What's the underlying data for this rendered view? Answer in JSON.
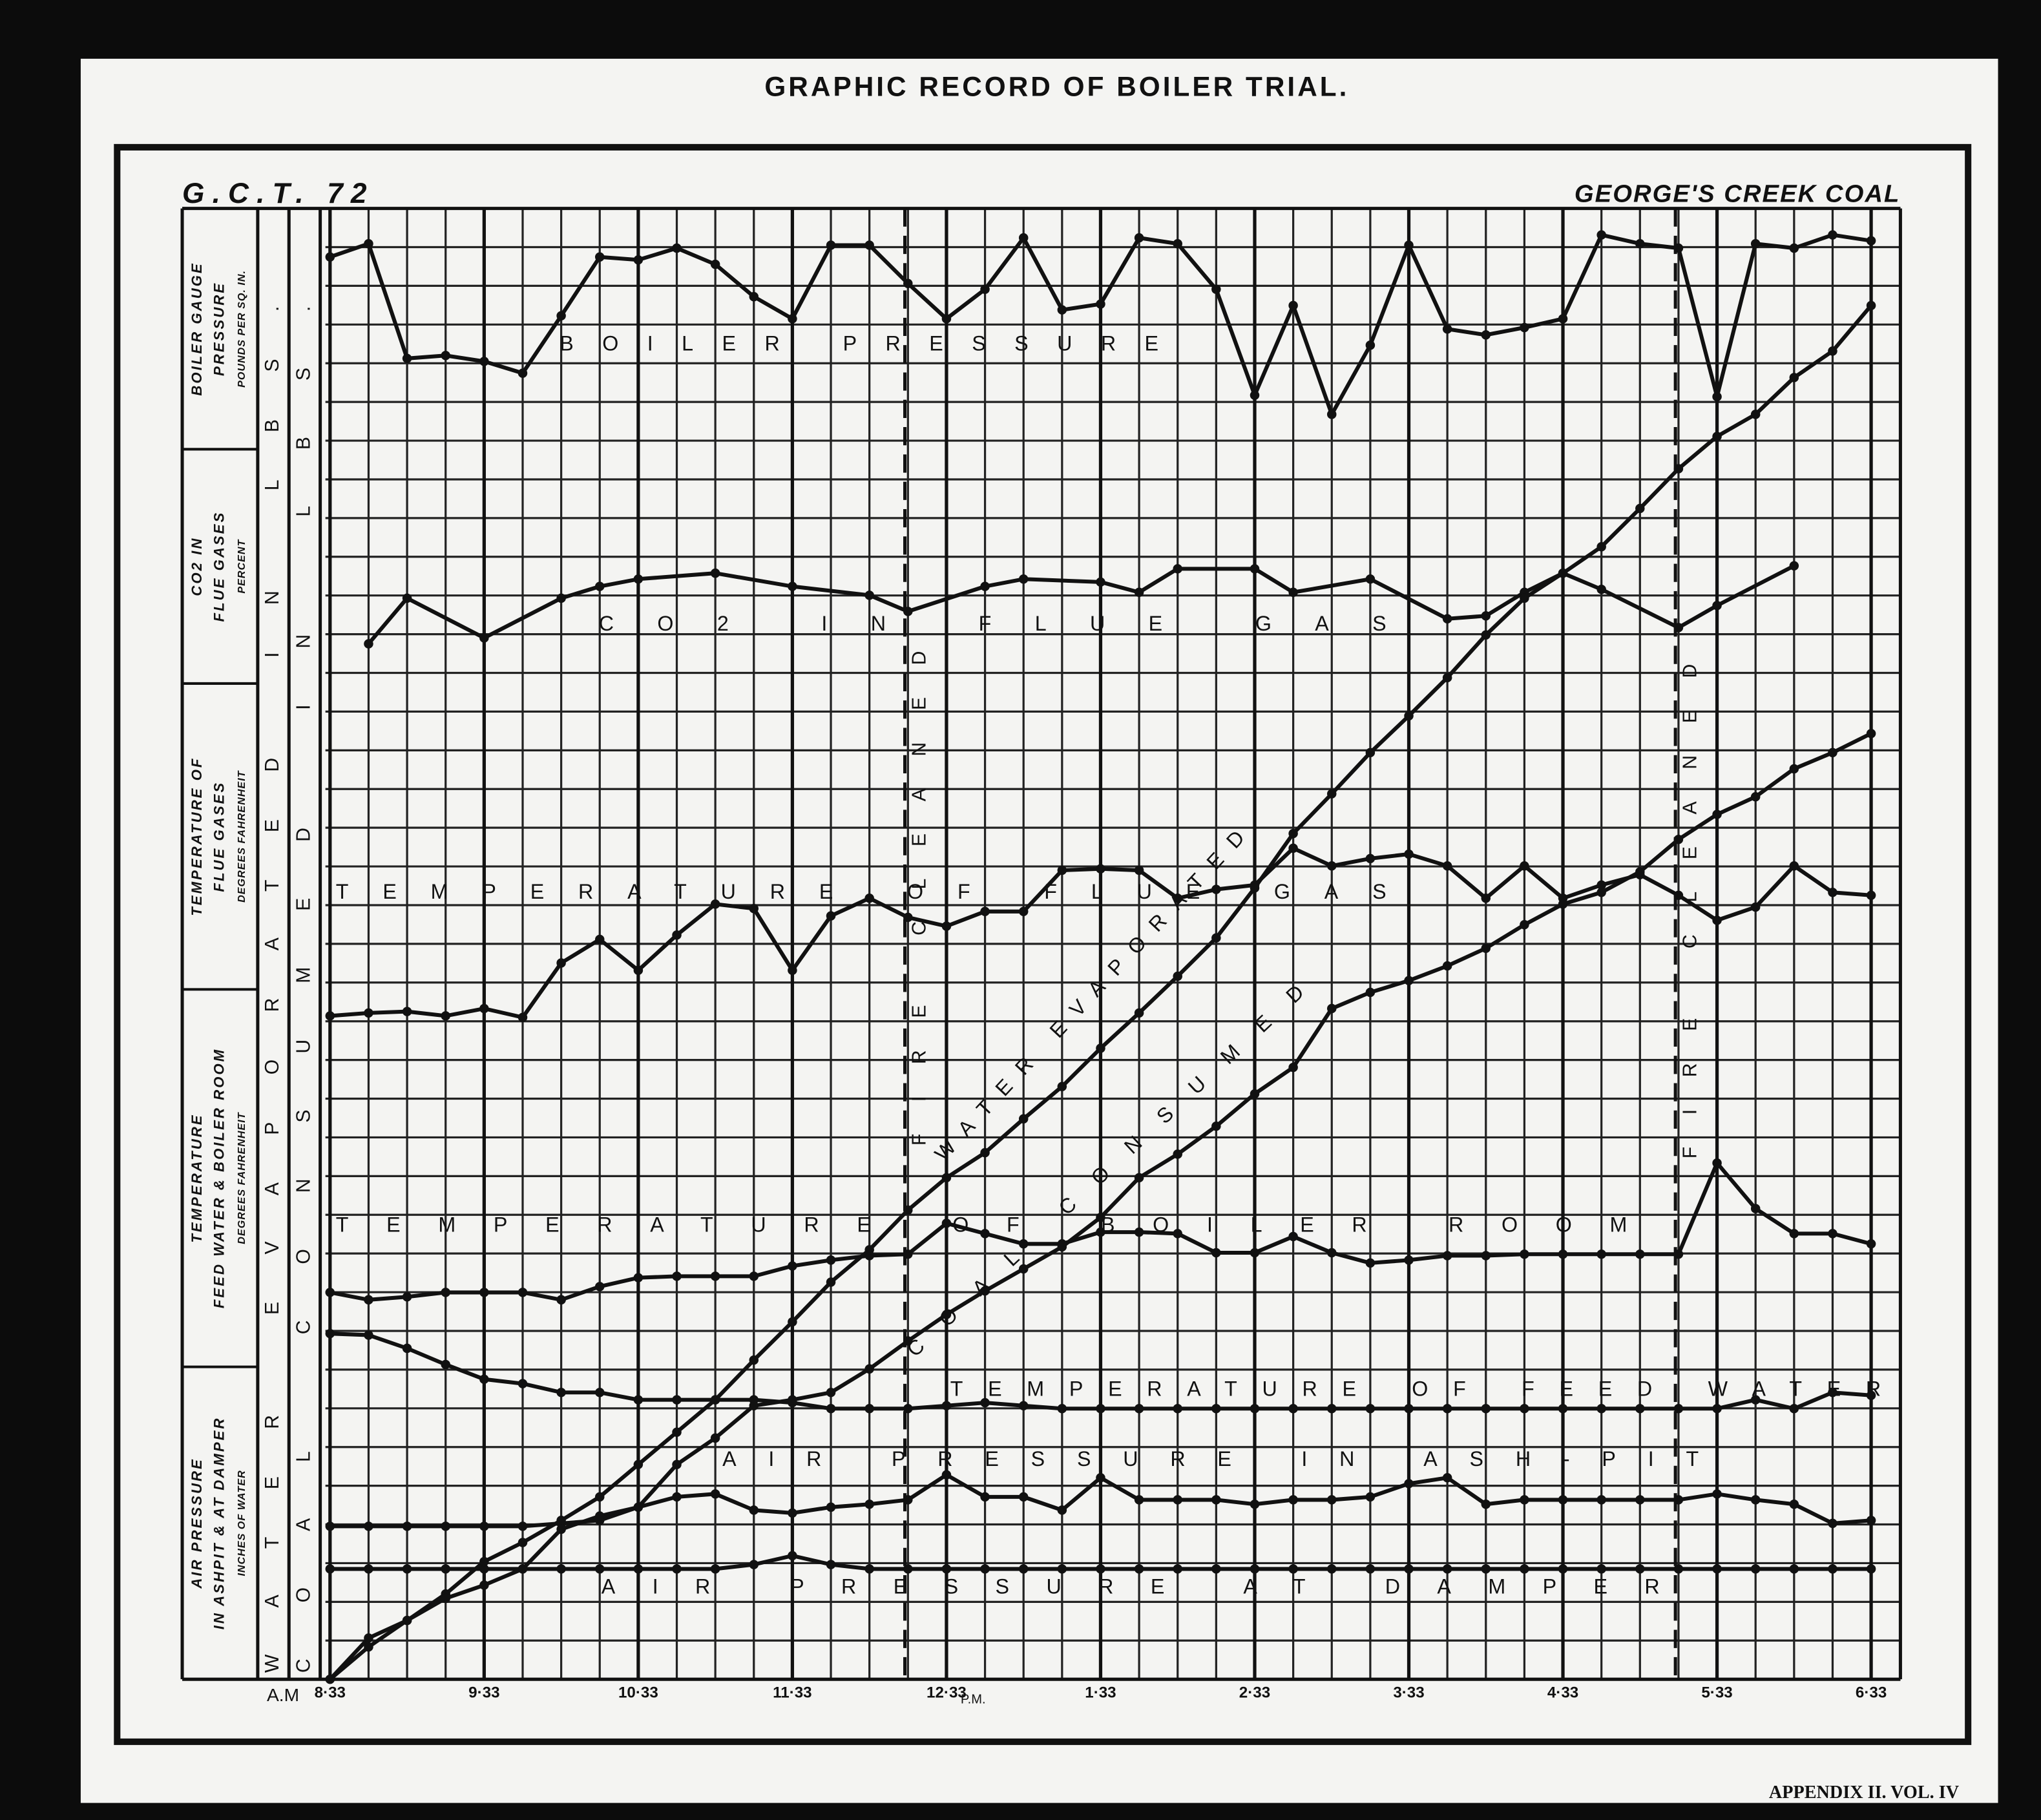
{
  "chart_data": {
    "type": "line",
    "title": "GRAPHIC RECORD OF BOILER TRIAL.",
    "code": "G.C.T. 72",
    "coal": "GEORGE'S CREEK COAL",
    "am_label": "A.M",
    "pm_label": "P.M.",
    "band_labels": [
      [
        "BOILER GAUGE",
        "PRESSURE",
        "POUNDS PER SQ. IN."
      ],
      [
        "CO2 IN",
        "FLUE GASES",
        "PERCENT"
      ],
      [
        "TEMPERATURE OF",
        "FLUE GASES",
        "DEGREES FAHRENHEIT"
      ],
      [
        "TEMPERATURE",
        "FEED WATER & BOILER ROOM",
        "DEGREES FAHRENHEIT"
      ],
      [
        "AIR PRESSURE",
        "IN ASHPIT & AT DAMPER",
        "INCHES OF WATER"
      ]
    ],
    "column_labels": [
      "WATER EVAPORATED IN LBS.",
      "COAL CONSUMED IN LBS."
    ],
    "fire_cleaned": [
      {
        "label": "FIRE CLEANED",
        "x": 12.28
      },
      {
        "label": "FIRE CLEANED",
        "x": 17.28
      }
    ],
    "xlim": [
      8.52,
      18.74
    ],
    "ylim": [
      0,
      100
    ],
    "grid": true,
    "xticks": [
      {
        "value": 8.55,
        "label": "8·33"
      },
      {
        "value": 9.55,
        "label": "9·33"
      },
      {
        "value": 10.55,
        "label": "10·33"
      },
      {
        "value": 11.55,
        "label": "11·33"
      },
      {
        "value": 12.55,
        "label": "12·33"
      },
      {
        "value": 13.55,
        "label": "1·33"
      },
      {
        "value": 14.55,
        "label": "2·33"
      },
      {
        "value": 15.55,
        "label": "3·33"
      },
      {
        "value": 16.55,
        "label": "4·33"
      },
      {
        "value": 17.55,
        "label": "5·33"
      },
      {
        "value": 18.55,
        "label": "6·33"
      }
    ],
    "x": [
      8.55,
      8.8,
      9.05,
      9.3,
      9.55,
      9.8,
      10.05,
      10.3,
      10.55,
      10.8,
      11.05,
      11.3,
      11.55,
      11.8,
      12.05,
      12.3,
      12.55,
      12.8,
      13.05,
      13.3,
      13.55,
      13.8,
      14.05,
      14.3,
      14.55,
      14.8,
      15.05,
      15.3,
      15.55,
      15.8,
      16.05,
      16.3,
      16.55,
      16.8,
      17.05,
      17.3,
      17.55,
      17.8,
      18.05,
      18.3,
      18.55
    ],
    "series": [
      {
        "name": "BOILER PRESSURE",
        "color": "#111111",
        "values": [
          96.7,
          97.6,
          89.8,
          90,
          89.6,
          88.8,
          92.7,
          96.7,
          96.5,
          97.3,
          96.2,
          94.0,
          92.5,
          97.5,
          97.5,
          94.9,
          92.5,
          94.5,
          98.0,
          93.1,
          93.5,
          98.0,
          97.6,
          94.5,
          87.3,
          93.4,
          86.0,
          90.7,
          97.5,
          91.8,
          91.4,
          91.9,
          92.5,
          98.2,
          97.6,
          97.3,
          87.2,
          97.6,
          97.3,
          98.2,
          97.8
        ]
      },
      {
        "name": "CO2 IN FLUE GAS",
        "color": "#111111",
        "x": [
          8.8,
          9.05,
          9.55,
          10.05,
          10.3,
          10.55,
          11.05,
          11.55,
          12.05,
          12.3,
          12.8,
          13.05,
          13.55,
          13.8,
          14.05,
          14.55,
          14.8,
          15.3,
          15.8,
          16.05,
          16.3,
          16.55,
          16.8,
          17.3,
          17.55,
          18.05
        ],
        "values": [
          70.4,
          73.5,
          70.8,
          73.5,
          74.3,
          74.8,
          75.2,
          74.3,
          73.7,
          72.6,
          74.3,
          74.8,
          74.6,
          73.9,
          75.5,
          75.5,
          73.9,
          74.8,
          72.1,
          72.3,
          73.9,
          75.2,
          74.1,
          71.5,
          73.0,
          75.7
        ]
      },
      {
        "name": "TEMPERATURE OF FLUE GAS",
        "color": "#111111",
        "values": [
          45.1,
          45.3,
          45.4,
          45.1,
          45.6,
          45.0,
          48.7,
          50.3,
          48.2,
          50.6,
          52.7,
          52.4,
          48.2,
          51.9,
          53.1,
          51.8,
          51.2,
          52.2,
          52.2,
          55.0,
          55.1,
          55.0,
          53.1,
          53.7,
          54.0,
          56.5,
          55.3,
          55.8,
          56.1,
          55.3,
          53.1,
          55.3,
          53.1,
          54.0,
          54.7,
          53.3,
          51.6,
          52.5,
          55.3,
          53.5,
          53.3
        ]
      },
      {
        "name": "TEMPERATURE OF BOILER ROOM",
        "color": "#111111",
        "values": [
          26.3,
          25.8,
          26.0,
          26.3,
          26.3,
          26.3,
          25.8,
          26.7,
          27.3,
          27.4,
          27.4,
          27.4,
          28.1,
          28.5,
          28.8,
          28.9,
          31.0,
          30.3,
          29.6,
          29.6,
          30.4,
          30.4,
          30.3,
          29.0,
          29.0,
          30.1,
          29.0,
          28.3,
          28.5,
          28.8,
          28.8,
          28.9,
          28.9,
          28.9,
          28.9,
          28.9,
          35.1,
          32.0,
          30.3,
          30.3,
          29.6
        ]
      },
      {
        "name": "TEMPERATURE OF FEED WATER",
        "color": "#111111",
        "values": [
          23.5,
          23.4,
          22.5,
          21.4,
          20.4,
          20.1,
          19.5,
          19.5,
          19.0,
          19.0,
          19.0,
          19.0,
          18.8,
          18.4,
          18.4,
          18.4,
          18.6,
          18.8,
          18.6,
          18.4,
          18.4,
          18.4,
          18.4,
          18.4,
          18.4,
          18.4,
          18.4,
          18.4,
          18.4,
          18.4,
          18.4,
          18.4,
          18.4,
          18.4,
          18.4,
          18.4,
          18.4,
          19.0,
          18.4,
          19.5,
          19.3
        ]
      },
      {
        "name": "AIR PRESSURE IN ASH-PIT",
        "color": "#111111",
        "values": [
          10.4,
          10.4,
          10.4,
          10.4,
          10.4,
          10.4,
          10.6,
          10.8,
          11.7,
          12.4,
          12.6,
          11.5,
          11.3,
          11.7,
          11.9,
          12.2,
          13.9,
          12.4,
          12.4,
          11.5,
          13.7,
          12.2,
          12.2,
          12.2,
          11.9,
          12.2,
          12.2,
          12.4,
          13.3,
          13.7,
          11.9,
          12.2,
          12.2,
          12.2,
          12.2,
          12.2,
          12.6,
          12.2,
          11.9,
          10.6,
          10.8
        ]
      },
      {
        "name": "AIR PRESSURE AT DAMPER",
        "color": "#111111",
        "values": [
          7.5,
          7.5,
          7.5,
          7.5,
          7.5,
          7.5,
          7.5,
          7.5,
          7.5,
          7.5,
          7.5,
          7.8,
          8.4,
          7.8,
          7.5,
          7.5,
          7.5,
          7.5,
          7.5,
          7.5,
          7.5,
          7.5,
          7.5,
          7.5,
          7.5,
          7.5,
          7.5,
          7.5,
          7.5,
          7.5,
          7.5,
          7.5,
          7.5,
          7.5,
          7.5,
          7.5,
          7.5,
          7.5,
          7.5,
          7.5,
          7.5
        ]
      },
      {
        "name": "WATER EVAPORATED",
        "color": "#111111",
        "values": [
          0,
          2.2,
          4.0,
          5.8,
          8.0,
          9.3,
          10.8,
          12.4,
          14.6,
          16.8,
          19.0,
          21.7,
          24.3,
          27.0,
          29.2,
          31.9,
          34.1,
          35.8,
          38.1,
          40.3,
          42.9,
          45.3,
          47.8,
          50.4,
          53.8,
          57.5,
          60.2,
          63.0,
          65.5,
          68.1,
          71.0,
          73.5,
          75.2,
          77.0,
          79.6,
          82.3,
          84.5,
          86.0,
          88.5,
          90.3,
          93.4
        ]
      },
      {
        "name": "COAL CONSUMED",
        "color": "#111111",
        "values": [
          0,
          2.8,
          4.0,
          5.5,
          6.4,
          7.5,
          10.2,
          11.1,
          11.7,
          14.6,
          16.4,
          18.6,
          19.0,
          19.5,
          21.1,
          23.0,
          24.8,
          26.4,
          27.9,
          29.4,
          31.4,
          34.1,
          35.7,
          37.6,
          39.8,
          41.6,
          45.6,
          46.7,
          47.5,
          48.5,
          49.7,
          51.3,
          52.7,
          53.5,
          54.9,
          57.1,
          58.8,
          60.0,
          61.9,
          63.0,
          64.3
        ]
      }
    ]
  },
  "footer": "APPENDIX II. VOL. IV"
}
